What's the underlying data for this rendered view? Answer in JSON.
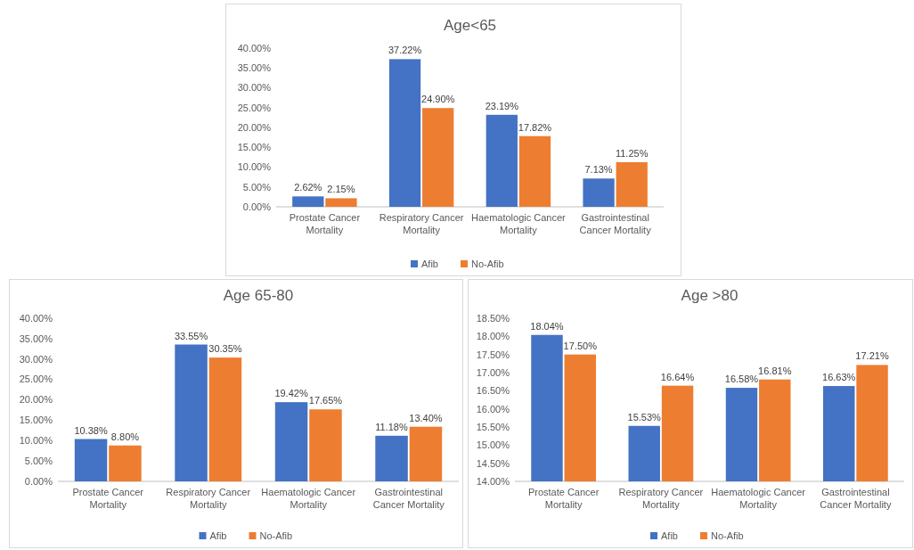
{
  "chart_data": [
    {
      "type": "bar",
      "title": "Age<65",
      "categories": [
        "Prostate Cancer Mortality",
        "Respiratory Cancer Mortality",
        "Haematologic Cancer Mortality",
        "Gastrointestinal Cancer Mortality"
      ],
      "series": [
        {
          "name": "Afib",
          "color": "#4472c4",
          "values": [
            2.62,
            37.22,
            23.19,
            7.13
          ],
          "value_labels": [
            "2.62%",
            "37.22%",
            "23.19%",
            "7.13%"
          ]
        },
        {
          "name": "No-Afib",
          "color": "#ed7d31",
          "values": [
            2.15,
            24.9,
            17.82,
            11.25
          ],
          "value_labels": [
            "2.15%",
            "24.90%",
            "17.82%",
            "11.25%"
          ]
        }
      ],
      "ylim": [
        0,
        40
      ],
      "yticks": [
        {
          "value": 0,
          "label": "0.00%"
        },
        {
          "value": 5,
          "label": "5.00%"
        },
        {
          "value": 10,
          "label": "10.00%"
        },
        {
          "value": 15,
          "label": "15.00%"
        },
        {
          "value": 20,
          "label": "20.00%"
        },
        {
          "value": 25,
          "label": "25.00%"
        },
        {
          "value": 30,
          "label": "30.00%"
        },
        {
          "value": 35,
          "label": "35.00%"
        },
        {
          "value": 40,
          "label": "40.00%"
        }
      ],
      "legend": "bottom"
    },
    {
      "type": "bar",
      "title": "Age 65-80",
      "categories": [
        "Prostate Cancer Mortality",
        "Respiratory Cancer Mortality",
        "Haematologic Cancer Mortality",
        "Gastrointestinal Cancer Mortality"
      ],
      "series": [
        {
          "name": "Afib",
          "color": "#4472c4",
          "values": [
            10.38,
            33.55,
            19.42,
            11.18
          ],
          "value_labels": [
            "10.38%",
            "33.55%",
            "19.42%",
            "11.18%"
          ]
        },
        {
          "name": "No-Afib",
          "color": "#ed7d31",
          "values": [
            8.8,
            30.35,
            17.65,
            13.4
          ],
          "value_labels": [
            "8.80%",
            "30.35%",
            "17.65%",
            "13.40%"
          ]
        }
      ],
      "ylim": [
        0,
        40
      ],
      "yticks": [
        {
          "value": 0,
          "label": "0.00%"
        },
        {
          "value": 5,
          "label": "5.00%"
        },
        {
          "value": 10,
          "label": "10.00%"
        },
        {
          "value": 15,
          "label": "15.00%"
        },
        {
          "value": 20,
          "label": "20.00%"
        },
        {
          "value": 25,
          "label": "25.00%"
        },
        {
          "value": 30,
          "label": "30.00%"
        },
        {
          "value": 35,
          "label": "35.00%"
        },
        {
          "value": 40,
          "label": "40.00%"
        }
      ],
      "legend": "bottom"
    },
    {
      "type": "bar",
      "title": "Age >80",
      "categories": [
        "Prostate Cancer Mortality",
        "Respiratory Cancer Mortality",
        "Haematologic Cancer Mortality",
        "Gastrointestinal Cancer Mortality"
      ],
      "series": [
        {
          "name": "Afib",
          "color": "#4472c4",
          "values": [
            18.04,
            15.53,
            16.58,
            16.63
          ],
          "value_labels": [
            "18.04%",
            "15.53%",
            "16.58%",
            "16.63%"
          ]
        },
        {
          "name": "No-Afib",
          "color": "#ed7d31",
          "values": [
            17.5,
            16.64,
            16.81,
            17.21
          ],
          "value_labels": [
            "17.50%",
            "16.64%",
            "16.81%",
            "17.21%"
          ]
        }
      ],
      "ylim": [
        14,
        18.5
      ],
      "yticks": [
        {
          "value": 14,
          "label": "14.00%"
        },
        {
          "value": 14.5,
          "label": "14.50%"
        },
        {
          "value": 15,
          "label": "15.00%"
        },
        {
          "value": 15.5,
          "label": "15.50%"
        },
        {
          "value": 16,
          "label": "16.00%"
        },
        {
          "value": 16.5,
          "label": "16.50%"
        },
        {
          "value": 17,
          "label": "17.00%"
        },
        {
          "value": 17.5,
          "label": "17.50%"
        },
        {
          "value": 18,
          "label": "18.00%"
        },
        {
          "value": 18.5,
          "label": "18.50%"
        }
      ],
      "legend": "bottom"
    }
  ]
}
